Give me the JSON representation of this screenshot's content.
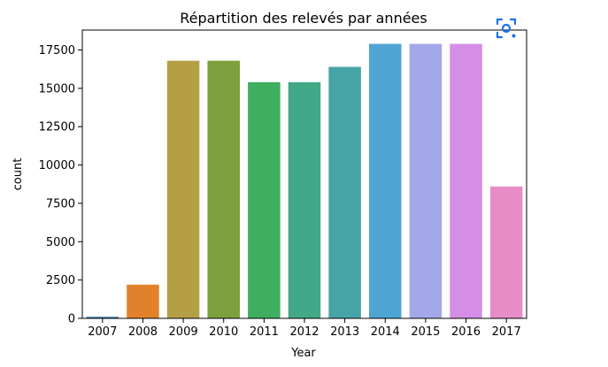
{
  "chart_data": {
    "type": "bar",
    "title": "Répartition des relevés par années",
    "xlabel": "Year",
    "ylabel": "count",
    "categories": [
      "2007",
      "2008",
      "2009",
      "2010",
      "2011",
      "2012",
      "2013",
      "2014",
      "2015",
      "2016",
      "2017"
    ],
    "values": [
      100,
      2200,
      16800,
      16800,
      15400,
      15400,
      16400,
      17900,
      17900,
      17900,
      8600
    ],
    "ylim": [
      0,
      18800
    ],
    "yticks": [
      0,
      2500,
      5000,
      7500,
      10000,
      12500,
      15000,
      17500
    ],
    "ytick_labels": [
      "0",
      "2500",
      "5000",
      "7500",
      "10000",
      "12500",
      "15000",
      "17500"
    ],
    "colors": [
      "#3274a1",
      "#e1812c",
      "#b59f45",
      "#7d9f3c",
      "#3fae61",
      "#43a887",
      "#46a4a6",
      "#4ea5d4",
      "#a3a8e8",
      "#d58ee6",
      "#e88cc8"
    ],
    "grid": false,
    "legend": "none"
  },
  "overlay": {
    "icon": "lens-search-icon",
    "accent": "#1a73e8"
  }
}
